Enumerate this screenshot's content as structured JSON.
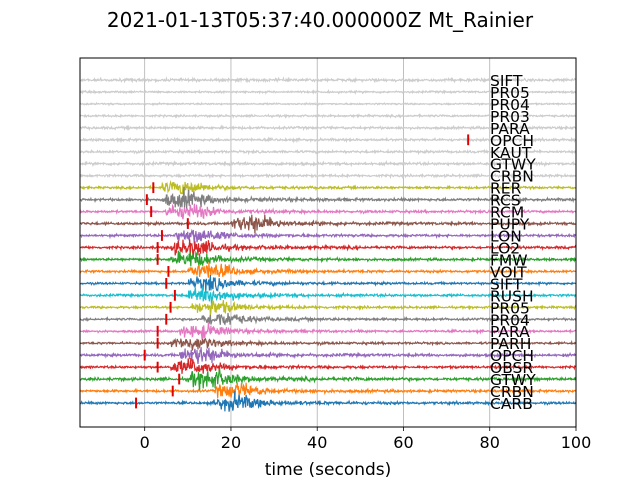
{
  "chart_data": {
    "type": "line",
    "title": "2021-01-13T05:37:40.000000Z Mt_Rainier",
    "xlabel": "time (seconds)",
    "ylabel": "",
    "xlim": [
      -15,
      100
    ],
    "x_ticks": [
      0,
      20,
      40,
      60,
      80,
      100
    ],
    "x_tick_labels": [
      "0",
      "20",
      "40",
      "60",
      "80",
      "100"
    ],
    "grid": "vertical",
    "series": [
      {
        "name": "SIFT",
        "color": "#cccccc",
        "pick_time": null,
        "amplitude": 0.35,
        "emergent_time": null
      },
      {
        "name": "PR05",
        "color": "#cccccc",
        "pick_time": null,
        "amplitude": 0.25,
        "emergent_time": null
      },
      {
        "name": "PR04",
        "color": "#cccccc",
        "pick_time": null,
        "amplitude": 0.2,
        "emergent_time": null
      },
      {
        "name": "PR03",
        "color": "#cccccc",
        "pick_time": null,
        "amplitude": 0.25,
        "emergent_time": null
      },
      {
        "name": "PARA",
        "color": "#cccccc",
        "pick_time": null,
        "amplitude": 0.3,
        "emergent_time": null
      },
      {
        "name": "OPCH",
        "color": "#cccccc",
        "pick_time": 75,
        "amplitude": 0.3,
        "emergent_time": null
      },
      {
        "name": "KAUT",
        "color": "#cccccc",
        "pick_time": null,
        "amplitude": 0.3,
        "emergent_time": null
      },
      {
        "name": "GTWY",
        "color": "#cccccc",
        "pick_time": null,
        "amplitude": 0.35,
        "emergent_time": null
      },
      {
        "name": "CRBN",
        "color": "#cccccc",
        "pick_time": null,
        "amplitude": 0.3,
        "emergent_time": null
      },
      {
        "name": "RER",
        "color": "#bcbd22",
        "pick_time": 2,
        "amplitude": 0.45,
        "emergent_time": 8
      },
      {
        "name": "RCS",
        "color": "#7f7f7f",
        "pick_time": 0.5,
        "amplitude": 0.55,
        "emergent_time": 8
      },
      {
        "name": "RCM",
        "color": "#e377c2",
        "pick_time": 1.5,
        "amplitude": 0.5,
        "emergent_time": 9
      },
      {
        "name": "PUPY",
        "color": "#8c564b",
        "pick_time": 10,
        "amplitude": 0.55,
        "emergent_time": 24
      },
      {
        "name": "LON",
        "color": "#9467bd",
        "pick_time": 4,
        "amplitude": 0.5,
        "emergent_time": 11
      },
      {
        "name": "LO2",
        "color": "#d62728",
        "pick_time": 3,
        "amplitude": 0.55,
        "emergent_time": 10
      },
      {
        "name": "FMW",
        "color": "#2ca02c",
        "pick_time": 3,
        "amplitude": 0.5,
        "emergent_time": 10
      },
      {
        "name": "VOIT",
        "color": "#ff7f0e",
        "pick_time": 5.5,
        "amplitude": 0.5,
        "emergent_time": 14
      },
      {
        "name": "SIFT",
        "color": "#1f77b4",
        "pick_time": 5,
        "amplitude": 0.45,
        "emergent_time": 14
      },
      {
        "name": "RUSH",
        "color": "#17becf",
        "pick_time": 7,
        "amplitude": 0.5,
        "emergent_time": 14
      },
      {
        "name": "PR05",
        "color": "#bcbd22",
        "pick_time": 6,
        "amplitude": 0.45,
        "emergent_time": 15
      },
      {
        "name": "PR04",
        "color": "#7f7f7f",
        "pick_time": 5,
        "amplitude": 0.45,
        "emergent_time": 17
      },
      {
        "name": "PARA",
        "color": "#e377c2",
        "pick_time": 3,
        "amplitude": 0.45,
        "emergent_time": 12
      },
      {
        "name": "PARH",
        "color": "#8c564b",
        "pick_time": 3,
        "amplitude": 0.45,
        "emergent_time": 10
      },
      {
        "name": "OPCH",
        "color": "#9467bd",
        "pick_time": 0,
        "amplitude": 0.55,
        "emergent_time": 12
      },
      {
        "name": "OBSR",
        "color": "#d62728",
        "pick_time": 3,
        "amplitude": 0.5,
        "emergent_time": 10
      },
      {
        "name": "GTWY",
        "color": "#2ca02c",
        "pick_time": 8,
        "amplitude": 0.6,
        "emergent_time": 14
      },
      {
        "name": "CRBN",
        "color": "#ff7f0e",
        "pick_time": 6.5,
        "amplitude": 0.5,
        "emergent_time": 20
      },
      {
        "name": "CARB",
        "color": "#1f77b4",
        "pick_time": -2,
        "amplitude": 0.5,
        "emergent_time": 20
      }
    ]
  }
}
